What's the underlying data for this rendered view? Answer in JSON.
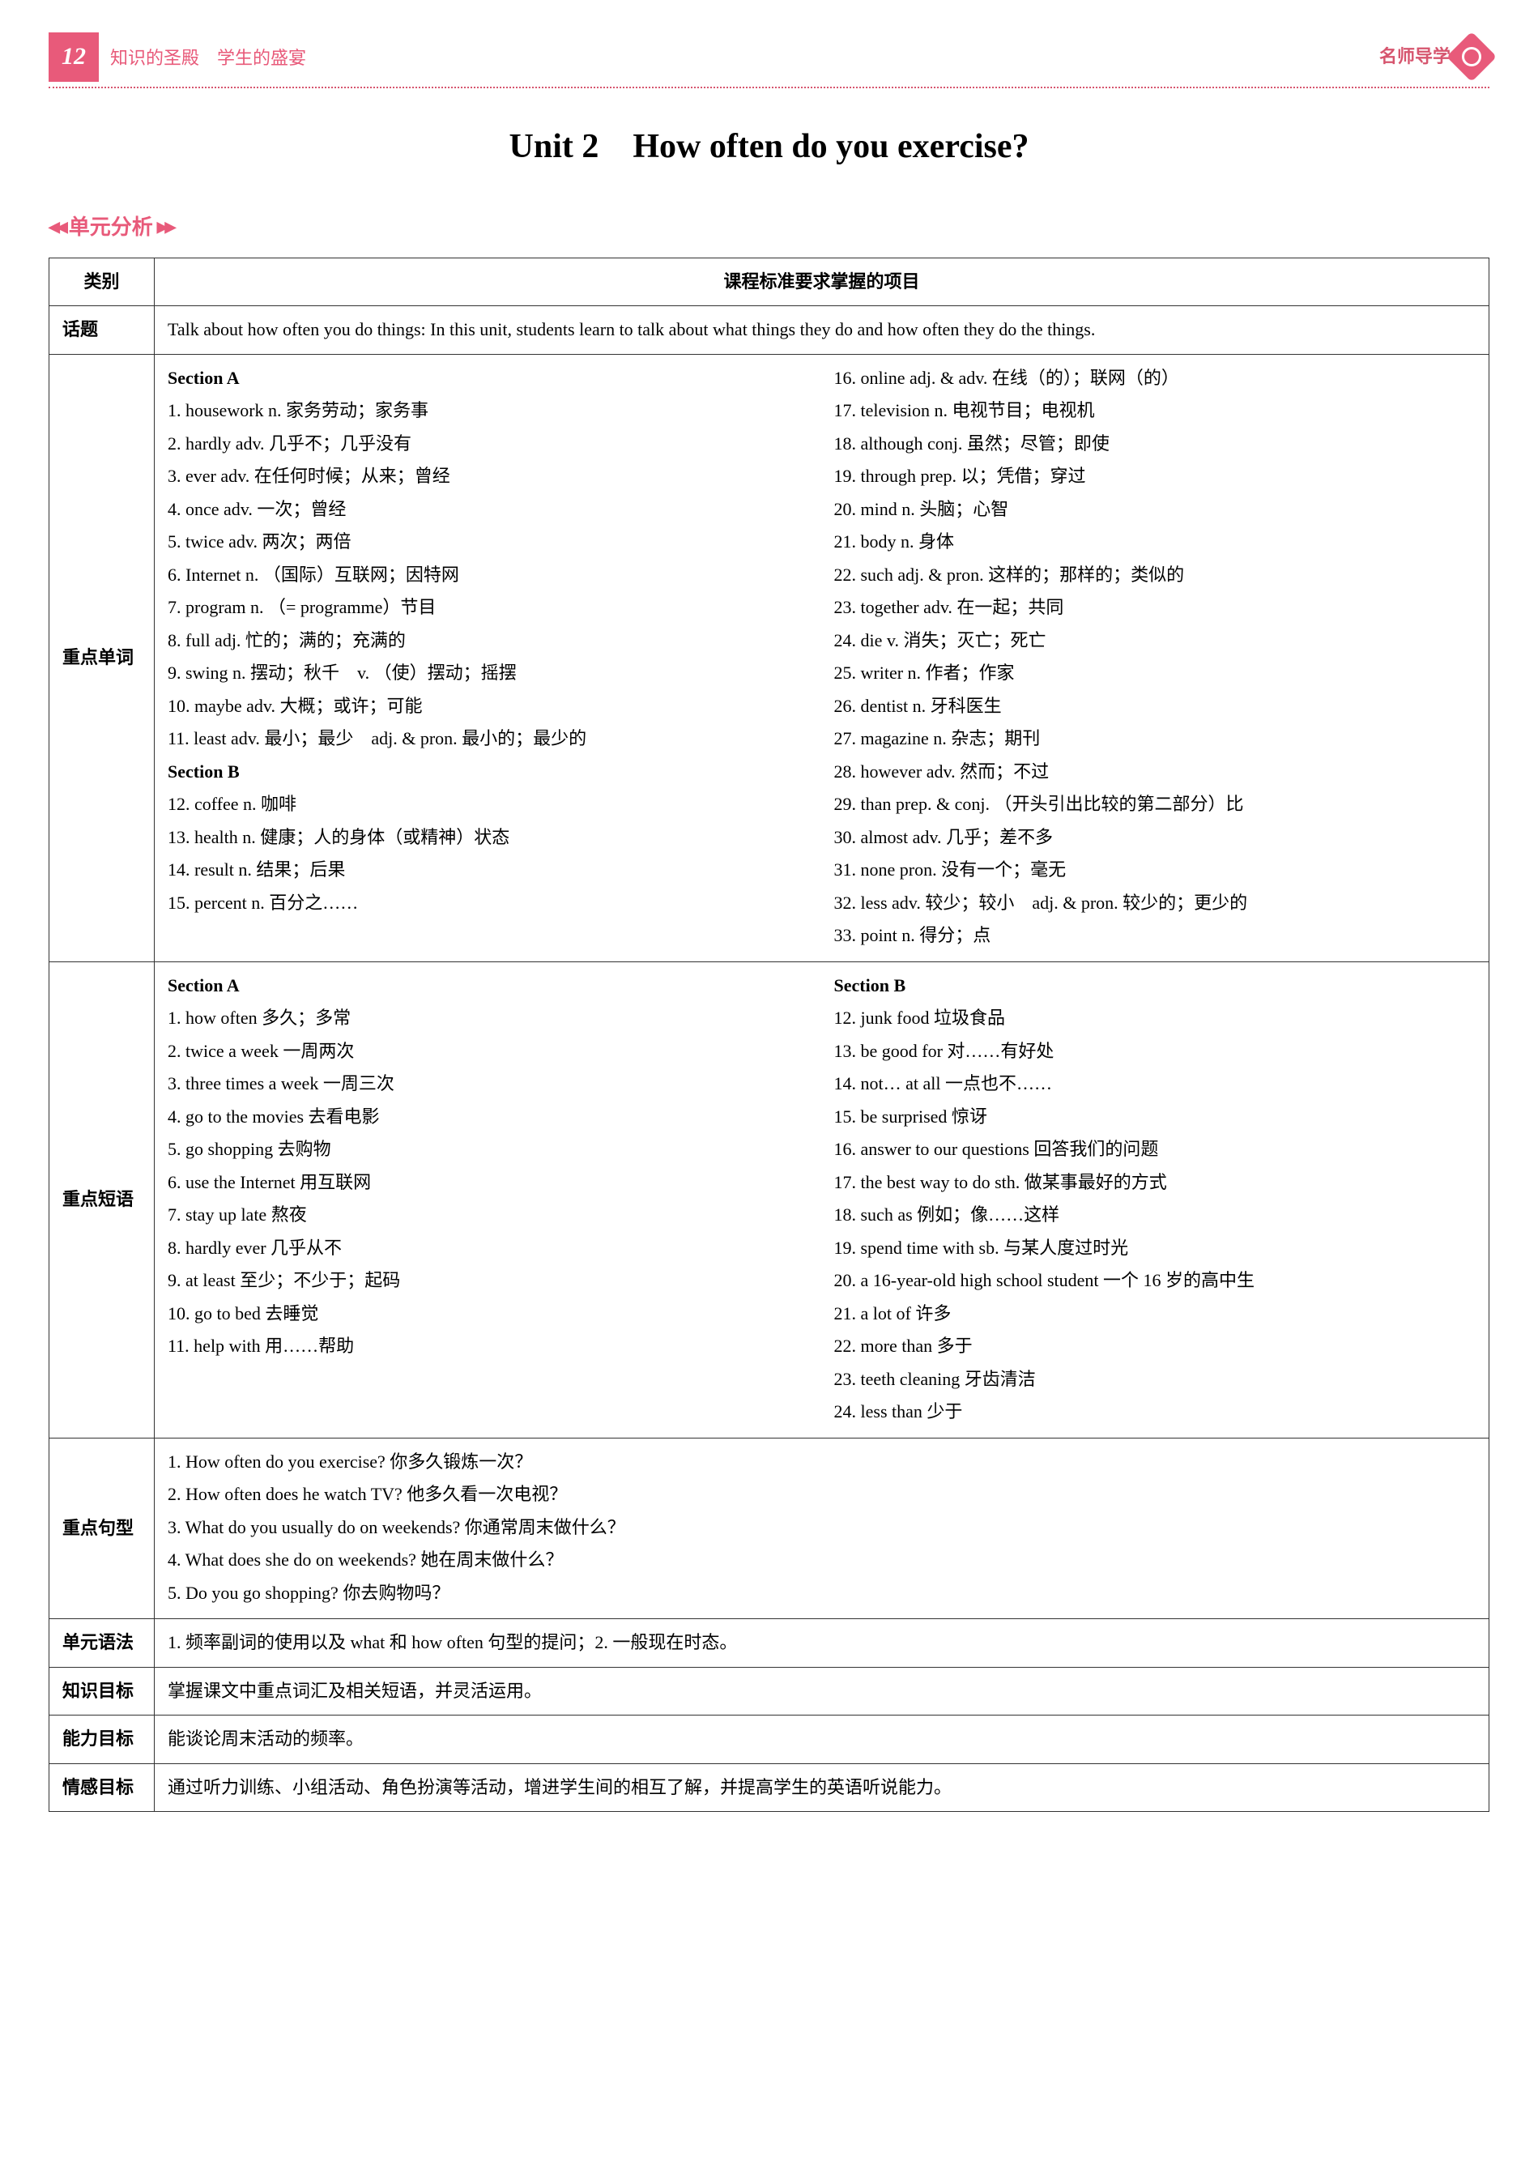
{
  "header": {
    "page_number": "12",
    "subtitle": "知识的圣殿　学生的盛宴",
    "logo_text": "名师导学"
  },
  "unit_title": "Unit 2　How often do you exercise?",
  "section_label": "单元分析",
  "table": {
    "head_col1": "类别",
    "head_col2": "课程标准要求掌握的项目",
    "topic_label": "话题",
    "topic_text": "Talk about how often you do things: In this unit, students learn to talk about what things they do and how often they do the things.",
    "vocab_label": "重点单词",
    "vocab": {
      "sectionA_title": "Section A",
      "sectionB_title": "Section B",
      "left": [
        "1. housework n. 家务劳动；家务事",
        "2. hardly adv. 几乎不；几乎没有",
        "3. ever adv. 在任何时候；从来；曾经",
        "4. once adv. 一次；曾经",
        "5. twice adv. 两次；两倍",
        "6. Internet n. （国际）互联网；因特网",
        "7. program n. （= programme）节目",
        "8. full adj. 忙的；满的；充满的",
        "9. swing n. 摆动；秋千　v. （使）摆动；摇摆",
        "10. maybe adv. 大概；或许；可能",
        "11. least adv. 最小；最少　adj. & pron. 最小的；最少的"
      ],
      "left_b": [
        "12. coffee n. 咖啡",
        "13. health n. 健康；人的身体（或精神）状态",
        "14. result n. 结果；后果",
        "15. percent n. 百分之……"
      ],
      "right": [
        "16. online adj. & adv. 在线（的）；联网（的）",
        "17. television n. 电视节目；电视机",
        "18. although conj. 虽然；尽管；即使",
        "19. through prep. 以；凭借；穿过",
        "20. mind n. 头脑；心智",
        "21. body n. 身体",
        "22. such adj. & pron. 这样的；那样的；类似的",
        "23. together adv. 在一起；共同",
        "24. die v. 消失；灭亡；死亡",
        "25. writer n. 作者；作家",
        "26. dentist n. 牙科医生",
        "27. magazine n. 杂志；期刊",
        "28. however adv. 然而；不过",
        "29. than prep. & conj. （开头引出比较的第二部分）比",
        "30. almost adv. 几乎；差不多",
        "31. none pron. 没有一个；毫无",
        "32. less adv. 较少；较小　adj. & pron. 较少的；更少的",
        "33. point n. 得分；点"
      ]
    },
    "phrases_label": "重点短语",
    "phrases": {
      "left_title": "Section A",
      "right_title": "Section B",
      "left": [
        "1. how often 多久；多常",
        "2. twice a week 一周两次",
        "3. three times a week 一周三次",
        "4. go to the movies 去看电影",
        "5. go shopping 去购物",
        "6. use the Internet 用互联网",
        "7. stay up late 熬夜",
        "8. hardly ever 几乎从不",
        "9. at least 至少；不少于；起码",
        "10. go to bed 去睡觉",
        "11. help with 用……帮助"
      ],
      "right": [
        "12. junk food 垃圾食品",
        "13. be good for 对……有好处",
        "14. not… at all 一点也不……",
        "15. be surprised 惊讶",
        "16. answer to our questions 回答我们的问题",
        "17. the best way to do sth. 做某事最好的方式",
        "18. such as 例如；像……这样",
        "19. spend time with sb. 与某人度过时光",
        "20. a 16-year-old high school student 一个 16 岁的高中生",
        "21. a lot of 许多",
        "22. more than 多于",
        "23. teeth cleaning 牙齿清洁",
        "24. less than 少于"
      ]
    },
    "sentences_label": "重点句型",
    "sentences": [
      "1. How often do you exercise?  你多久锻炼一次？",
      "2. How often does he watch TV?  他多久看一次电视？",
      "3. What do you usually do on weekends?  你通常周末做什么？",
      "4. What does she do on weekends?  她在周末做什么？",
      "5. Do you go shopping?  你去购物吗？"
    ],
    "grammar_label": "单元语法",
    "grammar_text": "1. 频率副词的使用以及 what 和 how often 句型的提问；2. 一般现在时态。",
    "knowledge_label": "知识目标",
    "knowledge_text": "掌握课文中重点词汇及相关短语，并灵活运用。",
    "ability_label": "能力目标",
    "ability_text": "能谈论周末活动的频率。",
    "emotion_label": "情感目标",
    "emotion_text": "通过听力训练、小组活动、角色扮演等活动，增进学生间的相互了解，并提高学生的英语听说能力。"
  }
}
